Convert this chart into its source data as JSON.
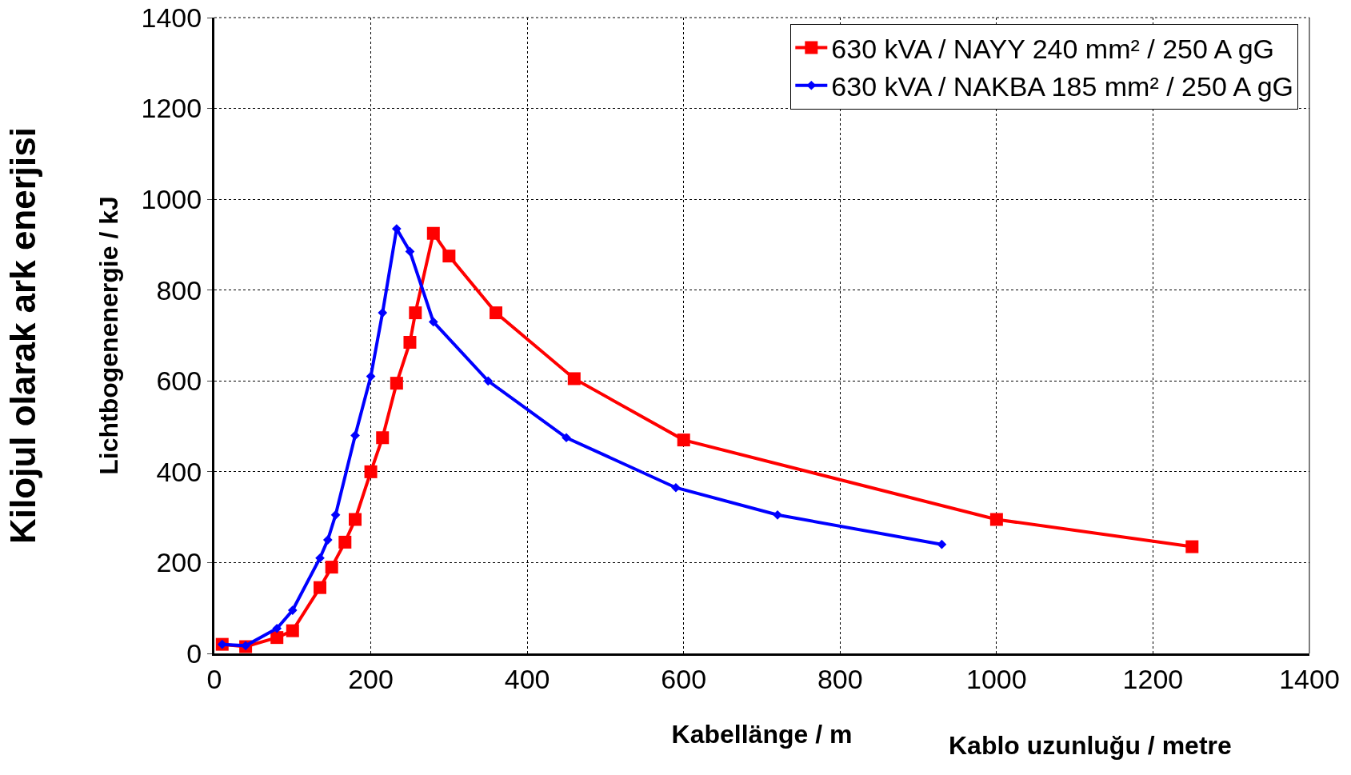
{
  "chart_data": {
    "type": "line",
    "xlabel": "Kabellänge / m",
    "ylabel": "Lichtbogenenergie / kJ",
    "annotations": [
      "Kablo uzunluğu / metre",
      "Kilojul olarak ark enerjisi"
    ],
    "xlim": [
      0,
      1400
    ],
    "xticks": [
      0,
      200,
      400,
      600,
      800,
      1000,
      1200,
      1400
    ],
    "ylim": [
      0,
      1400
    ],
    "yticks": [
      0,
      200,
      400,
      600,
      800,
      1000,
      1200,
      1400
    ],
    "grid": true,
    "legend": "top right",
    "line_style": "solid",
    "series": [
      {
        "name": "630 kVA / NAYY 240 mm² / 250 A gG",
        "color": "#ff0000",
        "marker": "square",
        "x": [
          10,
          40,
          80,
          100,
          135,
          150,
          167,
          180,
          200,
          215,
          233,
          250,
          257,
          280,
          300,
          360,
          460,
          600,
          1000,
          1250
        ],
        "values": [
          20,
          15,
          35,
          50,
          145,
          190,
          245,
          295,
          400,
          475,
          595,
          685,
          750,
          925,
          875,
          750,
          605,
          470,
          295,
          235
        ]
      },
      {
        "name": "630 kVA / NAKBA 185 mm² / 250 A gG",
        "color": "#0000ff",
        "marker": "diamond",
        "x": [
          10,
          40,
          80,
          100,
          135,
          145,
          155,
          180,
          200,
          215,
          233,
          250,
          280,
          350,
          450,
          590,
          720,
          930
        ],
        "values": [
          20,
          17,
          55,
          95,
          210,
          250,
          305,
          480,
          610,
          750,
          935,
          885,
          730,
          600,
          475,
          365,
          305,
          240
        ]
      }
    ]
  }
}
